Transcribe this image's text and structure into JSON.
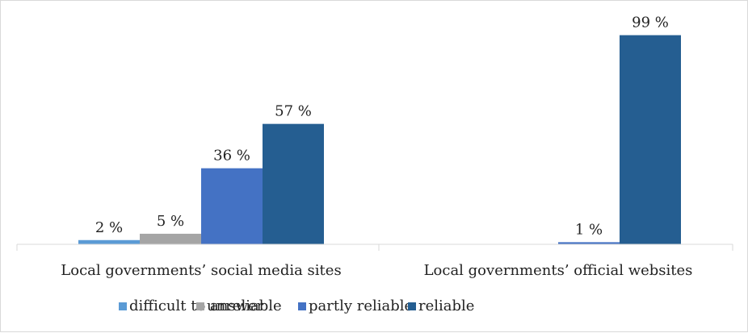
{
  "chart_data": {
    "type": "bar",
    "title": "",
    "xlabel": "",
    "ylabel": "",
    "ylim": [
      0,
      100
    ],
    "grid": false,
    "legend_position": "bottom",
    "categories": [
      "Local governments’ social media sites",
      "Local governments’ official websites"
    ],
    "series": [
      {
        "name": "difficult to answer",
        "color": "#5b9bd5",
        "values": [
          2,
          null
        ],
        "labels": [
          "2 %",
          ""
        ]
      },
      {
        "name": "unreliable",
        "color": "#a5a5a5",
        "values": [
          5,
          null
        ],
        "labels": [
          "5 %",
          ""
        ]
      },
      {
        "name": "partly reliable",
        "color": "#4472c4",
        "values": [
          36,
          1
        ],
        "labels": [
          "36 %",
          "1 %"
        ]
      },
      {
        "name": "reliable",
        "color": "#255e91",
        "values": [
          57,
          99
        ],
        "labels": [
          "57 %",
          "99 %"
        ]
      }
    ]
  }
}
